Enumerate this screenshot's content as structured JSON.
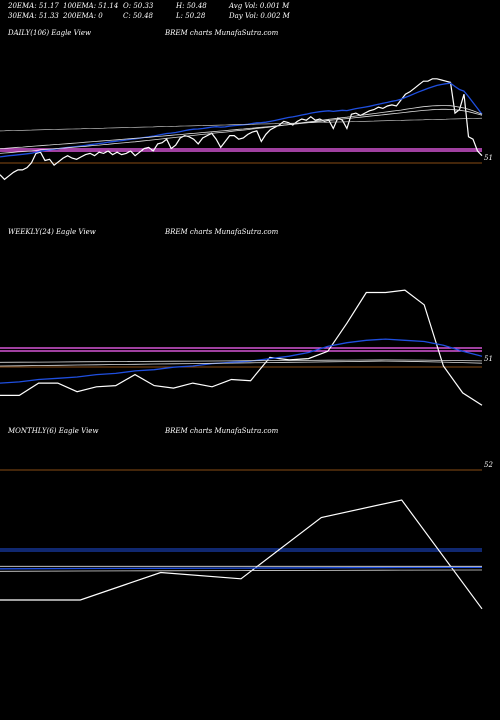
{
  "header": {
    "row1": [
      "20EMA: 51.17",
      "100EMA: 51.14",
      "O: 50.33",
      "H: 50.48",
      "Avg Vol: 0.001 M"
    ],
    "row2": [
      "30EMA: 51.33",
      "200EMA: 0",
      "C: 50.48",
      "L: 50.28",
      "Day Vol: 0.002 M"
    ]
  },
  "colors": {
    "price": "#ffffff",
    "ema_fast": "#1f4fe0",
    "ema_slow": "#dddddd",
    "ref_line": "#ff66ff",
    "level_line": "#b5651d"
  },
  "chart_data": [
    {
      "type": "line",
      "panel_label": "DAILY(106) Eagle  View",
      "watermark": "BREM charts MunafaSutra.com",
      "y_tick_labels": [
        "51"
      ],
      "series": [
        {
          "values": [
            40,
            36,
            39,
            42,
            44,
            44,
            46,
            50,
            58,
            59,
            52,
            53,
            48,
            51,
            54,
            56,
            54,
            53,
            55,
            57,
            58,
            56,
            59,
            58,
            60,
            57,
            59,
            57,
            58,
            60,
            56,
            59,
            62,
            63,
            60,
            66,
            67,
            70,
            62,
            65,
            71,
            73,
            72,
            70,
            66,
            71,
            73,
            75,
            70,
            63,
            68,
            73,
            73,
            70,
            71,
            74,
            76,
            77,
            68,
            74,
            78,
            80,
            82,
            85,
            84,
            82,
            85,
            87,
            86,
            89,
            86,
            87,
            85,
            86,
            79,
            88,
            86,
            79,
            91,
            92,
            90,
            92,
            94,
            95,
            97,
            96,
            98,
            99,
            98,
            103,
            108,
            110,
            113,
            116,
            119,
            119,
            121,
            121,
            120,
            119,
            118,
            92,
            95,
            108,
            72,
            70,
            60,
            56
          ]
        },
        {
          "values": [
            55,
            55.5,
            56,
            56.4,
            56.8,
            57.2,
            57.6,
            58.1,
            58.9,
            59.8,
            60.5,
            61,
            61.5,
            62,
            62.5,
            63,
            63.4,
            63.8,
            64.2,
            64.7,
            65.3,
            65.8,
            66.3,
            66.8,
            67.4,
            67.9,
            68.4,
            68.8,
            69.3,
            69.9,
            70.3,
            70.8,
            71.4,
            72,
            72.5,
            73.3,
            74,
            74.8,
            75.1,
            75.6,
            76.4,
            77.2,
            77.9,
            78.4,
            78.6,
            79,
            79.6,
            80.2,
            80.5,
            80.2,
            80.4,
            81,
            81.5,
            81.8,
            82.1,
            82.6,
            83.2,
            83.8,
            83.9,
            84.3,
            85,
            85.8,
            86.6,
            87.5,
            88.3,
            88.8,
            89.6,
            90.4,
            91.1,
            92,
            92.6,
            93.2,
            93.6,
            94,
            93.5,
            94,
            94.4,
            94.1,
            95,
            95.8,
            96.4,
            97.1,
            97.8,
            98.6,
            99.5,
            100.3,
            101.1,
            102,
            102.7,
            103.8,
            105.3,
            106.8,
            108.4,
            110,
            111.5,
            112.9,
            114.2,
            115.4,
            116.2,
            116.9,
            117.3,
            114.5,
            112,
            110.5,
            106,
            101,
            96,
            91
          ]
        },
        {
          "values": [
            58,
            58.3,
            58.6,
            58.9,
            59.2,
            59.5,
            59.8,
            60.1,
            60.5,
            60.9,
            61.3,
            61.6,
            61.9,
            62.2,
            62.5,
            62.8,
            63.1,
            63.4,
            63.7,
            64,
            64.4,
            64.7,
            65,
            65.4,
            65.7,
            66.1,
            66.4,
            66.8,
            67.1,
            67.5,
            67.8,
            68.2,
            68.6,
            69,
            69.4,
            69.8,
            70.2,
            70.7,
            71.1,
            71.5,
            71.9,
            72.4,
            72.8,
            73.2,
            73.6,
            74,
            74.4,
            74.9,
            75.3,
            75.6,
            76,
            76.4,
            76.9,
            77.3,
            77.7,
            78.1,
            78.6,
            79,
            79.4,
            79.8,
            80.3,
            80.8,
            81.3,
            81.8,
            82.3,
            82.8,
            83.3,
            83.8,
            84.3,
            84.8,
            85.3,
            85.8,
            86.3,
            86.8,
            87.2,
            87.7,
            88.2,
            88.6,
            89.1,
            89.6,
            90.1,
            90.6,
            91.1,
            91.6,
            92.1,
            92.6,
            93.1,
            93.6,
            94.1,
            94.6,
            95.2,
            95.8,
            96.3,
            96.9,
            97.4,
            97.8,
            98.1,
            98.3,
            98.4,
            98.4,
            98.3,
            97.7,
            97,
            96.3,
            95.3,
            94,
            92.5,
            91
          ]
        },
        {
          "values": [
            62,
            62.2,
            62.5,
            62.8,
            63.1,
            63.3,
            63.6,
            63.9,
            64.2,
            64.5,
            64.8,
            65.1,
            65.4,
            65.6,
            65.9,
            66.2,
            66.5,
            66.8,
            67.1,
            67.4,
            67.7,
            68,
            68.3,
            68.6,
            68.9,
            69.2,
            69.5,
            69.8,
            70.1,
            70.4,
            70.7,
            71,
            71.3,
            71.6,
            72,
            72.3,
            72.6,
            72.9,
            73.3,
            73.6,
            73.9,
            74.3,
            74.6,
            74.9,
            75.2,
            75.6,
            75.9,
            76.2,
            76.6,
            76.9,
            77.2,
            77.6,
            77.9,
            78.3,
            78.6,
            79,
            79.3,
            79.7,
            80,
            80.4,
            80.7,
            81.1,
            81.5,
            81.9,
            82.2,
            82.6,
            83,
            83.4,
            83.8,
            84.2,
            84.6,
            85,
            85.4,
            85.8,
            86.2,
            86.6,
            87,
            87.4,
            87.8,
            88.2,
            88.6,
            89,
            89.4,
            89.8,
            90.2,
            90.6,
            91,
            91.4,
            91.8,
            92.2,
            92.6,
            93.1,
            93.5,
            93.9,
            94.3,
            94.6,
            94.9,
            95.1,
            95.2,
            95.2,
            95.1,
            94.8,
            94.4,
            93.9,
            93.2,
            92.3,
            91.3,
            90.2
          ]
        },
        {
          "values": [
            77,
            77.1,
            77.2,
            77.3,
            77.4,
            77.5,
            77.6,
            77.7,
            77.8,
            77.9,
            78,
            78.1,
            78.2,
            78.3,
            78.4,
            78.5,
            78.6,
            78.7,
            78.8,
            78.9,
            79,
            79.1,
            79.2,
            79.3,
            79.4,
            79.5,
            79.6,
            79.7,
            79.8,
            79.9,
            80,
            80.1,
            80.2,
            80.3,
            80.4,
            80.5,
            80.6,
            80.7,
            80.8,
            80.9,
            81,
            81.1,
            81.2,
            81.3,
            81.4,
            81.5,
            81.6,
            81.7,
            81.8,
            81.9,
            82,
            82.1,
            82.2,
            82.3,
            82.4,
            82.5,
            82.6,
            82.7,
            82.8,
            82.9,
            83,
            83.1,
            83.2,
            83.3,
            83.4,
            83.5,
            83.6,
            83.7,
            83.8,
            83.9,
            84,
            84.1,
            84.2,
            84.3,
            84.4,
            84.5,
            84.6,
            84.7,
            84.8,
            84.9,
            85,
            85.1,
            85.2,
            85.3,
            85.4,
            85.5,
            85.6,
            85.7,
            85.8,
            85.9,
            86,
            86.1,
            86.2,
            86.3,
            86.4,
            86.5,
            86.6,
            86.7,
            86.8,
            86.9,
            87,
            87.1,
            87.2,
            87.3,
            87.4,
            87.5,
            87.6,
            87.7
          ]
        }
      ]
    },
    {
      "type": "line",
      "panel_label": "WEEKLY(24) Eagle  View",
      "watermark": "BREM charts MunafaSutra.com",
      "y_tick_labels": [
        "51"
      ],
      "series": [
        {
          "values": [
            16,
            16,
            26,
            26,
            19,
            23,
            24,
            33,
            24,
            22,
            26,
            23,
            29,
            28,
            47,
            45,
            46,
            52,
            75,
            100,
            100,
            102,
            90,
            40,
            18,
            8
          ]
        },
        {
          "values": [
            26,
            27,
            29,
            30,
            31,
            33,
            34,
            36,
            37,
            39,
            40,
            42,
            43,
            44,
            46,
            48,
            51,
            56,
            59,
            61,
            62,
            61,
            60,
            57,
            52,
            48
          ]
        },
        {
          "values": [
            40,
            40.2,
            40.4,
            40.6,
            40.8,
            41,
            41.2,
            41.4,
            41.6,
            41.8,
            42,
            42.2,
            42.4,
            42.6,
            42.8,
            43,
            43.2,
            43.4,
            43.6,
            43.8,
            44,
            43.8,
            43.5,
            43.2,
            42.8,
            42.3
          ]
        },
        {
          "values": [
            43,
            43.1,
            43.2,
            43.3,
            43.4,
            43.5,
            43.6,
            43.7,
            43.8,
            43.9,
            44,
            44.1,
            44.2,
            44.3,
            44.4,
            44.5,
            44.6,
            44.7,
            44.8,
            44.9,
            45,
            44.9,
            44.8,
            44.6,
            44.4,
            44.2
          ]
        }
      ]
    },
    {
      "type": "line",
      "panel_label": "MONTHLY(6) Eagle  View",
      "watermark": "BREM charts MunafaSutra.com",
      "y_tick_labels": [
        "52"
      ],
      "series": [
        {
          "values": [
            16,
            16,
            38,
            33,
            82,
            96,
            9
          ]
        },
        {
          "values": [
            41,
            41.2,
            41.4,
            41.5,
            41.8,
            42,
            42.1
          ]
        },
        {
          "values": [
            43,
            43,
            43,
            43,
            43,
            43,
            43
          ]
        },
        {
          "values": [
            39,
            39.2,
            39.4,
            39.5,
            39.7,
            39.9,
            40
          ]
        }
      ]
    }
  ]
}
